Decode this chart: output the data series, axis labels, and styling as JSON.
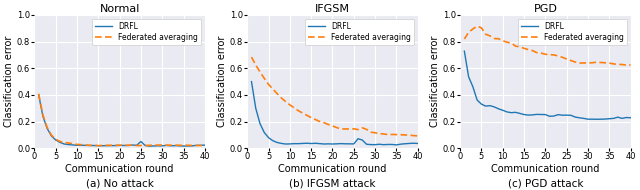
{
  "titles": [
    "Normal",
    "IFGSM",
    "PGD"
  ],
  "xlabel": "Communication round",
  "ylabel": "Classification error",
  "subtitles": [
    "(a) No attack",
    "(b) IFGSM attack",
    "(c) PGD attack"
  ],
  "xlim": [
    0,
    40
  ],
  "ylim": [
    0,
    1.0
  ],
  "drfl_color": "#1f77b4",
  "fedavg_color": "#ff7f0e",
  "legend_labels": [
    "DRFL",
    "Federated averaging"
  ],
  "figsize": [
    6.4,
    1.9
  ],
  "dpi": 100,
  "bg_color": "#eaeaf2",
  "grid_color": "white",
  "yticks": [
    0.0,
    0.2,
    0.4,
    0.6,
    0.8,
    1.0
  ],
  "xticks": [
    0,
    5,
    10,
    15,
    20,
    25,
    30,
    35,
    40
  ]
}
